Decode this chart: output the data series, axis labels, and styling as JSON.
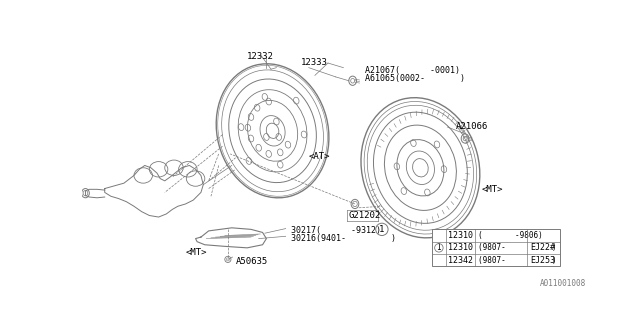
{
  "bg_color": "#ffffff",
  "line_color": "#7a7a7a",
  "text_color": "#000000",
  "watermark": "A011001008",
  "label_12332": "12332",
  "label_12333": "12333",
  "label_A21067": "A21067(      -0001)",
  "label_A61065": "A61065(0002-       )",
  "label_AT": "<AT>",
  "label_A21066": "A21066",
  "label_MT": "<MT>",
  "label_G21202": "G21202",
  "label_30217": "30217(      -9312)",
  "label_30216": "30216(9401-         )",
  "label_MT2": "<MT>",
  "label_A50635": "A50635",
  "table_rows": [
    [
      "",
      "12310",
      "(       -9806)",
      ""
    ],
    [
      "1",
      "12310",
      "(9807-          )",
      "EJ22#"
    ],
    [
      "",
      "12342",
      "(9807-          )",
      "EJ253"
    ]
  ]
}
